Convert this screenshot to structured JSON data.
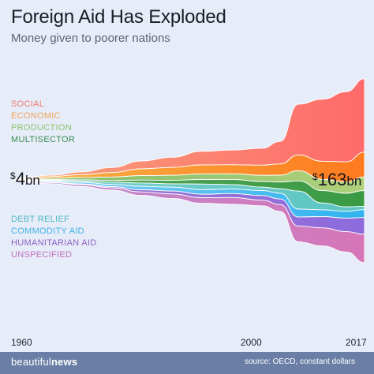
{
  "title": "Foreign Aid Has Exploded",
  "subtitle": "Money given to poorer nations",
  "brand": {
    "left": "beautiful",
    "right": "news"
  },
  "source": "source: OECD, constant dollars",
  "annotations": {
    "start": {
      "currency": "$",
      "value": "4",
      "unit": "bn"
    },
    "end": {
      "currency": "$",
      "value": "163",
      "unit": "bn"
    }
  },
  "x_ticks": [
    "1960",
    "2000",
    "2017"
  ],
  "legend_top": [
    {
      "label": "SOCIAL",
      "color": "#f2796e"
    },
    {
      "label": "ECONOMIC",
      "color": "#f2a35a"
    },
    {
      "label": "PRODUCTION",
      "color": "#8cc26c"
    },
    {
      "label": "MULTISECTOR",
      "color": "#3d8d52"
    }
  ],
  "legend_bottom": [
    {
      "label": "DEBT RELIEF",
      "color": "#4db8c4"
    },
    {
      "label": "COMMODITY AID",
      "color": "#40b3e6"
    },
    {
      "label": "HUMANITARIAN AID",
      "color": "#8d5fc4"
    },
    {
      "label": "UNSPECIFIED",
      "color": "#c06fbc"
    }
  ],
  "chart_data": {
    "type": "area",
    "title": "Foreign Aid Has Exploded",
    "subtitle": "Money given to poorer nations",
    "x": [
      1960,
      1965,
      1970,
      1975,
      1980,
      1985,
      1990,
      1995,
      2000,
      2003,
      2006,
      2010,
      2014,
      2017
    ],
    "units": "bn (constant dollars)",
    "x_ticks": [
      1960,
      2000,
      2017
    ],
    "series": [
      {
        "name": "SOCIAL",
        "color_top": "#ff6a6a",
        "color_bottom": "#f7a27a",
        "values": [
          0.6,
          1.2,
          2.5,
          4.5,
          7,
          9,
          12,
          13,
          15,
          20,
          45,
          55,
          62,
          65
        ]
      },
      {
        "name": "ECONOMIC",
        "color_top": "#ff7a1f",
        "color_bottom": "#f7b546",
        "values": [
          0.8,
          1.5,
          2.5,
          4,
          6,
          7,
          8,
          8,
          9,
          10,
          14,
          16,
          18,
          22
        ]
      },
      {
        "name": "PRODUCTION",
        "color_top": "#b0d07a",
        "color_bottom": "#7dbd6c",
        "values": [
          0.6,
          1.2,
          2,
          3,
          4,
          4.5,
          5,
          5,
          5.5,
          6,
          9,
          10,
          10,
          12
        ]
      },
      {
        "name": "MULTISECTOR",
        "color_top": "#3a9a44",
        "color_bottom": "#58a85a",
        "values": [
          0.3,
          0.6,
          1,
          1.5,
          2.5,
          3,
          4,
          4.5,
          5,
          6,
          9,
          11,
          12,
          14
        ]
      },
      {
        "name": "DEBT RELIEF",
        "color_top": "#5cc6c2",
        "color_bottom": "#7fd0cf",
        "values": [
          0.3,
          0.6,
          1.2,
          2,
          3,
          3,
          5,
          4,
          3,
          4,
          16,
          6,
          4,
          3
        ]
      },
      {
        "name": "COMMODITY AID",
        "color_top": "#2fb3ef",
        "color_bottom": "#88d0f3",
        "values": [
          0.6,
          1,
          1.5,
          2,
          3,
          3.5,
          4,
          4,
          4.5,
          5,
          7,
          6,
          6,
          7
        ]
      },
      {
        "name": "HUMANITARIAN AID",
        "color_top": "#8e6bdc",
        "color_bottom": "#9a77cf",
        "values": [
          0.2,
          0.4,
          0.6,
          1,
          2,
          2.5,
          3,
          3.5,
          4,
          5,
          8,
          10,
          12,
          15
        ]
      },
      {
        "name": "UNSPECIFIED",
        "color_top": "#d676b8",
        "color_bottom": "#b98bd2",
        "values": [
          0.6,
          1,
          1.6,
          2,
          3,
          4,
          5,
          6,
          5,
          6,
          14,
          16,
          18,
          25
        ]
      }
    ],
    "annotations": [
      {
        "x": 1960,
        "label": "$4bn"
      },
      {
        "x": 2017,
        "label": "$163bn"
      }
    ]
  }
}
